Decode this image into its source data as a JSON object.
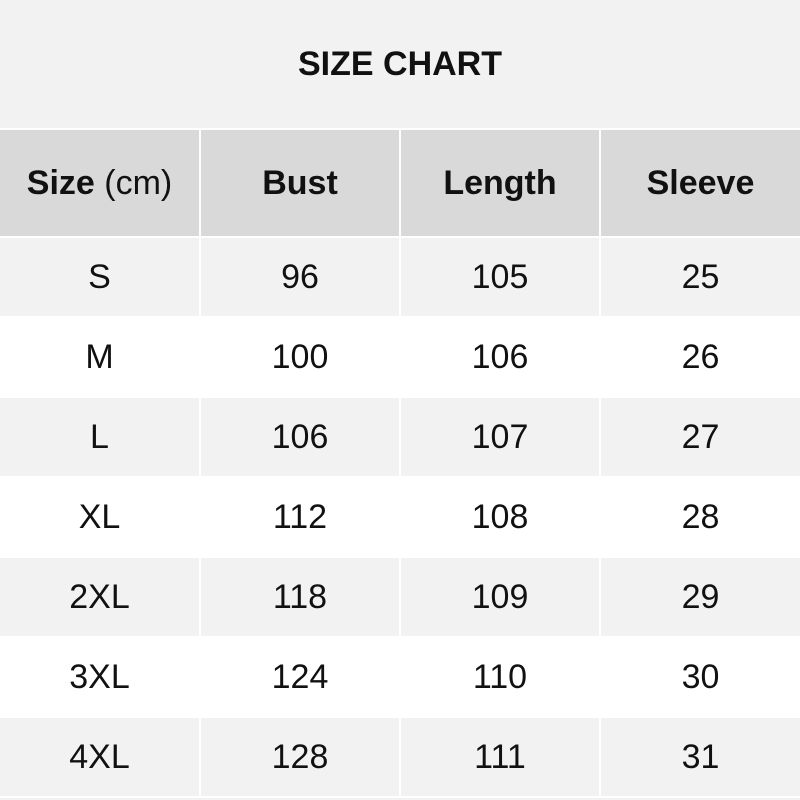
{
  "title": "SIZE CHART",
  "header": {
    "size_bold": "Size",
    "size_unit": " (cm)",
    "columns": [
      "Bust",
      "Length",
      "Sleeve"
    ]
  },
  "rows": [
    [
      "S",
      "96",
      "105",
      "25"
    ],
    [
      "M",
      "100",
      "106",
      "26"
    ],
    [
      "L",
      "106",
      "107",
      "27"
    ],
    [
      "XL",
      "112",
      "108",
      "28"
    ],
    [
      "2XL",
      "118",
      "109",
      "29"
    ],
    [
      "3XL",
      "124",
      "110",
      "30"
    ],
    [
      "4XL",
      "128",
      "111",
      "31"
    ]
  ]
}
